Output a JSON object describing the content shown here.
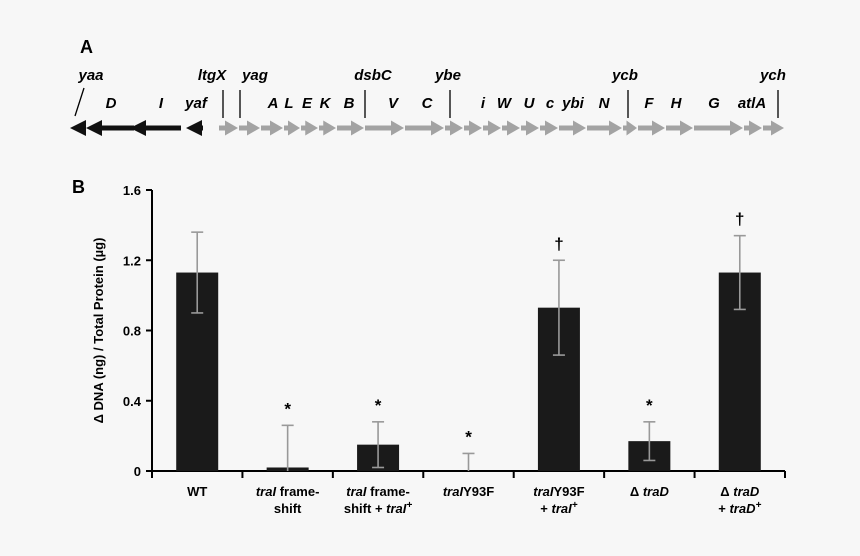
{
  "panel_a": {
    "label": "A",
    "genes_upper": [
      "yaa",
      "ltgX",
      "yag",
      "dsbC",
      "ybe",
      "ycb",
      "ych"
    ],
    "genes_lower": [
      "D",
      "I",
      "yaf",
      "A",
      "L",
      "E",
      "K",
      "B",
      "V",
      "C",
      "i",
      "W",
      "U",
      "c",
      "ybi",
      "N",
      "F",
      "H",
      "G",
      "atlA"
    ]
  },
  "panel_b": {
    "label": "B"
  },
  "chart_data": {
    "type": "bar",
    "ylabel": "Δ DNA (ng) / Total Protein (µg)",
    "ylim": [
      0,
      1.6
    ],
    "yticks": [
      "0",
      "0.4",
      "0.8",
      "1.2",
      "1.6"
    ],
    "categories": [
      [
        "WT"
      ],
      [
        "traI frame-",
        "shift"
      ],
      [
        "traI frame-",
        "shift + traI+"
      ],
      [
        "traIY93F"
      ],
      [
        "traIY93F",
        "+ traI+"
      ],
      [
        "Δ traD"
      ],
      [
        "Δ traD",
        "+ traD+"
      ]
    ],
    "values": [
      1.13,
      0.02,
      0.15,
      0.0,
      0.93,
      0.17,
      1.13
    ],
    "errors": [
      0.23,
      0.24,
      0.13,
      0.1,
      0.27,
      0.11,
      0.21
    ],
    "annotations": [
      "",
      "*",
      "*",
      "*",
      "†",
      "*",
      "†"
    ],
    "colors": {
      "bar": "#1a1a1a",
      "error": "#999999",
      "arrow_dark": "#111111",
      "arrow_light": "#a3a3a3"
    }
  }
}
